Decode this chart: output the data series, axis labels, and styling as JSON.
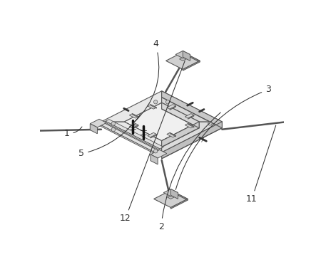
{
  "bg_color": "#ffffff",
  "line_color": "#555555",
  "dark_line_color": "#111111",
  "label_color": "#333333",
  "fig_width": 4.43,
  "fig_height": 3.75,
  "dpi": 100,
  "label_fontsize": 9,
  "frame_face_top": "#e8e8e8",
  "frame_face_side": "#d0d0d0",
  "frame_face_front": "#c8c8c8",
  "inner_face": "#f0f0f0",
  "anchor_top": "#d4d4d4",
  "anchor_side": "#b8b8b8"
}
